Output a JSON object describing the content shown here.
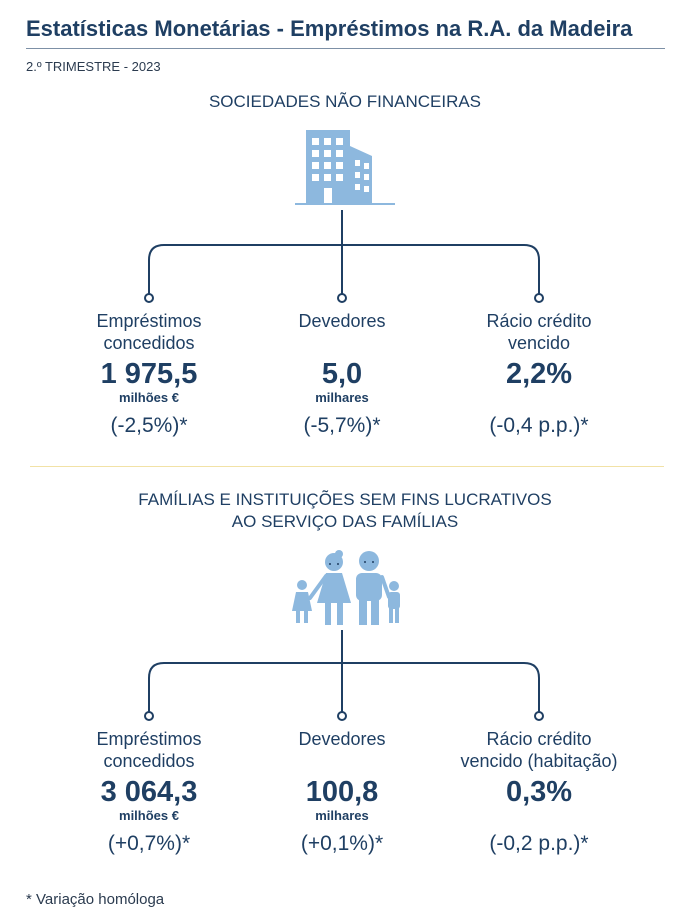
{
  "header": {
    "title": "Estatísticas Monetárias - Empréstimos na R.A. da Madeira",
    "subtitle": "2.º TRIMESTRE - 2023"
  },
  "section1": {
    "title": "SOCIEDADES NÃO FINANCEIRAS",
    "icon": "building-icon",
    "items": [
      {
        "label_line1": "Empréstimos",
        "label_line2": "concedidos",
        "value": "1 975,5",
        "unit": "milhões €",
        "variation": "(-2,5%)*"
      },
      {
        "label_line1": "Devedores",
        "label_line2": "",
        "value": "5,0",
        "unit": "milhares",
        "variation": "(-5,7%)*"
      },
      {
        "label_line1": "Rácio crédito",
        "label_line2": "vencido",
        "value": "2,2%",
        "unit": "",
        "variation": "(-0,4 p.p.)*"
      }
    ]
  },
  "section2": {
    "title_line1": "FAMÍLIAS E INSTITUIÇÕES SEM FINS LUCRATIVOS",
    "title_line2": "AO SERVIÇO DAS FAMÍLIAS",
    "icon": "family-icon",
    "items": [
      {
        "label_line1": "Empréstimos",
        "label_line2": "concedidos",
        "value": "3 064,3",
        "unit": "milhões €",
        "variation": "(+0,7%)*"
      },
      {
        "label_line1": "Devedores",
        "label_line2": "",
        "value": "100,8",
        "unit": "milhares",
        "variation": "(+0,1%)*"
      },
      {
        "label_line1": "Rácio crédito",
        "label_line2": "vencido (habitação)",
        "value": "0,3%",
        "unit": "",
        "variation": "(-0,2 p.p.)*"
      }
    ]
  },
  "footnote": "* Variação homóloga",
  "colors": {
    "primary": "#1f3f63",
    "icon": "#8db8de",
    "divider": "#f2e2a6"
  }
}
